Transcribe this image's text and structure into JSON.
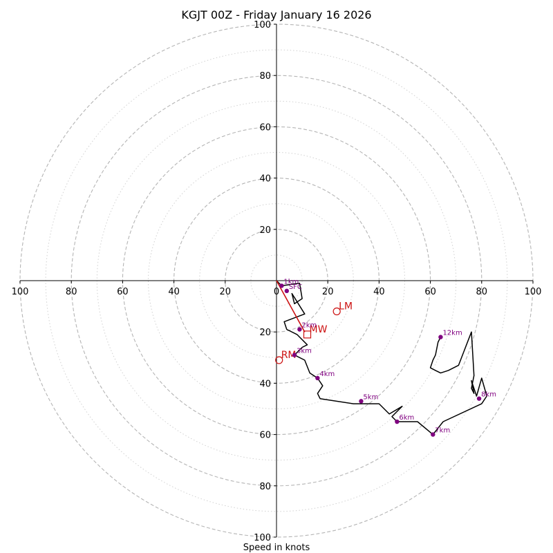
{
  "chart_data": {
    "type": "hodograph",
    "title": "KGJT 00Z - Friday January 16 2026",
    "xlabel": "Speed in knots",
    "units": "knots",
    "axis_max": 100,
    "dashed_rings": [
      20,
      40,
      60,
      80,
      100
    ],
    "dotted_rings": [
      10,
      30,
      50,
      70,
      90
    ],
    "x_tick_labels": [
      "100",
      "80",
      "60",
      "40",
      "20",
      "0",
      "20",
      "40",
      "60",
      "80",
      "100"
    ],
    "x_tick_values": [
      -100,
      -80,
      -60,
      -40,
      -20,
      0,
      20,
      40,
      60,
      80,
      100
    ],
    "y_tick_labels_up": [
      "20",
      "40",
      "60",
      "80",
      "100"
    ],
    "y_tick_labels_down": [
      "20",
      "40",
      "60",
      "80",
      "100"
    ],
    "y_tick_values": [
      20,
      40,
      60,
      80,
      100
    ],
    "colors": {
      "trace": "#000000",
      "height_marker": "#800080",
      "motion": "#cc1111",
      "ring": "#b4b4b4",
      "inner_ring": "#d0d0d0"
    },
    "hodograph_trace": [
      [
        0,
        0
      ],
      [
        2,
        -2
      ],
      [
        9,
        -1
      ],
      [
        10,
        -7
      ],
      [
        7,
        -9
      ],
      [
        6,
        -5
      ],
      [
        11,
        -13
      ],
      [
        3,
        -16
      ],
      [
        4,
        -19
      ],
      [
        8,
        -21
      ],
      [
        12,
        -25
      ],
      [
        10,
        -26
      ],
      [
        7,
        -29
      ],
      [
        11,
        -31
      ],
      [
        13,
        -36
      ],
      [
        16,
        -38
      ],
      [
        18,
        -41
      ],
      [
        16,
        -44
      ],
      [
        17,
        -46
      ],
      [
        30,
        -48
      ],
      [
        40,
        -48
      ],
      [
        44,
        -52
      ],
      [
        49,
        -49
      ],
      [
        45,
        -53
      ],
      [
        47,
        -55
      ],
      [
        55,
        -55
      ],
      [
        61,
        -60
      ],
      [
        65,
        -55
      ],
      [
        80,
        -48
      ],
      [
        82,
        -45
      ],
      [
        80,
        -38
      ],
      [
        78,
        -45
      ],
      [
        76,
        -39
      ],
      [
        77,
        -44
      ],
      [
        76,
        -42
      ],
      [
        77,
        -37
      ],
      [
        76,
        -20
      ],
      [
        71,
        -33
      ],
      [
        67,
        -35
      ],
      [
        64,
        -36
      ],
      [
        62,
        -35
      ],
      [
        60,
        -34
      ],
      [
        61,
        -31
      ],
      [
        62,
        -29
      ],
      [
        63,
        -24
      ],
      [
        64,
        -22
      ]
    ],
    "height_markers": [
      {
        "label": "1km",
        "u": 2,
        "v": -2
      },
      {
        "label": "SFC",
        "u": 4,
        "v": -4
      },
      {
        "label": "2km",
        "u": 9,
        "v": -19
      },
      {
        "label": "3km",
        "u": 7,
        "v": -29
      },
      {
        "label": "4km",
        "u": 16,
        "v": -38
      },
      {
        "label": "5km",
        "u": 33,
        "v": -47
      },
      {
        "label": "6km",
        "u": 47,
        "v": -55
      },
      {
        "label": "7km",
        "u": 61,
        "v": -60
      },
      {
        "label": "8km",
        "u": 79,
        "v": -46
      },
      {
        "label": "12km",
        "u": 64,
        "v": -22
      }
    ],
    "storm_motion": {
      "line_from": [
        0,
        0
      ],
      "line_to": [
        11,
        -20
      ],
      "markers": [
        {
          "label": "LM",
          "shape": "circle",
          "u": 23.5,
          "v": -12
        },
        {
          "label": "MW",
          "shape": "square",
          "u": 12,
          "v": -21
        },
        {
          "label": "RM",
          "shape": "circle",
          "u": 1,
          "v": -31
        }
      ]
    }
  }
}
